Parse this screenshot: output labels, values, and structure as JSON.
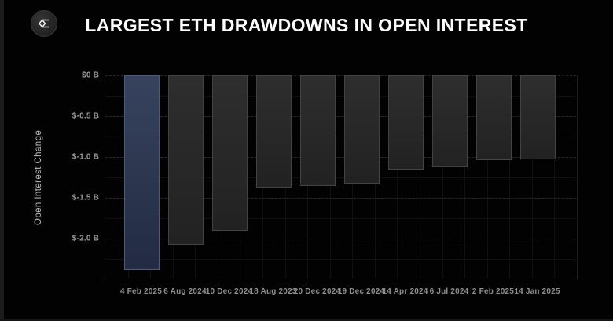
{
  "header": {
    "title": "LARGEST ETH DRAWDOWNS IN OPEN INTEREST",
    "logo_icon": "sigma-diamond-logo"
  },
  "chart_data": {
    "type": "bar",
    "title": "LARGEST ETH DRAWDOWNS IN OPEN INTEREST",
    "xlabel": "",
    "ylabel": "Open Interest Change",
    "unit": "billions USD",
    "orientation": "vertical-negative",
    "grid": true,
    "legend_position": "none",
    "categories": [
      "4 Feb 2025",
      "6 Aug 2024",
      "10 Dec 2024",
      "18 Aug 2023",
      "20 Dec 2024",
      "19 Dec 2024",
      "14 Apr 2024",
      "6 Jul 2024",
      "2 Feb 2025",
      "14 Jan 2025"
    ],
    "values": [
      -2.38,
      -2.08,
      -1.9,
      -1.37,
      -1.36,
      -1.33,
      -1.15,
      -1.12,
      -1.04,
      -1.03
    ],
    "highlight_index": 0,
    "ylim": [
      -2.5,
      0
    ],
    "yticks": [
      {
        "value": 0,
        "label": "$0 B"
      },
      {
        "value": -0.5,
        "label": "$-0.5 B"
      },
      {
        "value": -1.0,
        "label": "$-1.0 B"
      },
      {
        "value": -1.5,
        "label": "$-1.5 B"
      },
      {
        "value": -2.0,
        "label": "$-2.0 B"
      }
    ],
    "colors": {
      "background": "#020202",
      "highlight_bar_top": "#37435e",
      "highlight_bar_bottom": "#222b42",
      "highlight_bar_border": "#4d5b7e",
      "bar_top": "#2e2e2e",
      "bar_bottom": "#222222",
      "bar_border": "#434343",
      "axis_line": "#5c5c5c",
      "major_gridline": "#272727",
      "tick_text": "#9d9d9d",
      "title_text": "#ffffff"
    }
  }
}
